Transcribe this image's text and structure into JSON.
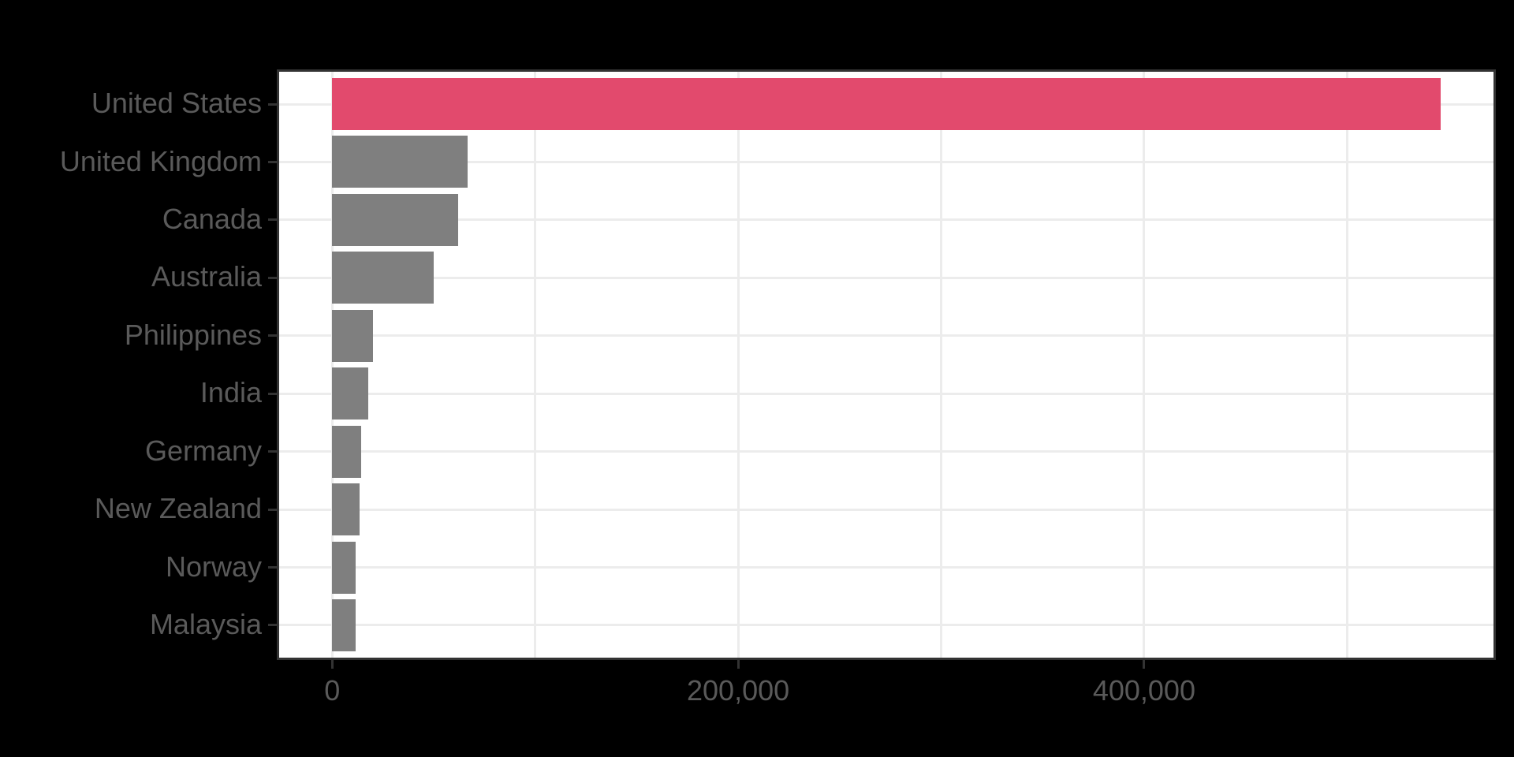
{
  "chart_data": {
    "type": "bar",
    "orientation": "horizontal",
    "title": "",
    "categories": [
      "United States",
      "United Kingdom",
      "Canada",
      "Australia",
      "Philippines",
      "India",
      "Germany",
      "New Zealand",
      "Norway",
      "Malaysia"
    ],
    "values": [
      546000,
      66700,
      62100,
      50100,
      20200,
      17600,
      14300,
      13500,
      11500,
      11400
    ],
    "highlight_category": "United States",
    "xlabel": "",
    "ylabel": "",
    "x_axis": {
      "range": [
        -27300,
        573300
      ],
      "ticks": [
        0,
        200000,
        400000
      ],
      "tick_labels": [
        "0",
        "200,000",
        "400,000"
      ],
      "minor_gridline_step": 100000,
      "gridline_max": 500000
    },
    "grid": {
      "vertical": "every 100,000 from 0 to 500,000",
      "horizontal": "one major line per category center"
    },
    "legend_position": "none",
    "colors": {
      "highlight_bar": "#E24A6D",
      "default_bar": "#7F7F7F",
      "panel_background": "#FFFFFF",
      "page_background": "#000000",
      "gridline": "#ECECEC",
      "panel_border": "#333333",
      "tick_mark": "#333333",
      "axis_text": "#5A5A5A"
    }
  }
}
